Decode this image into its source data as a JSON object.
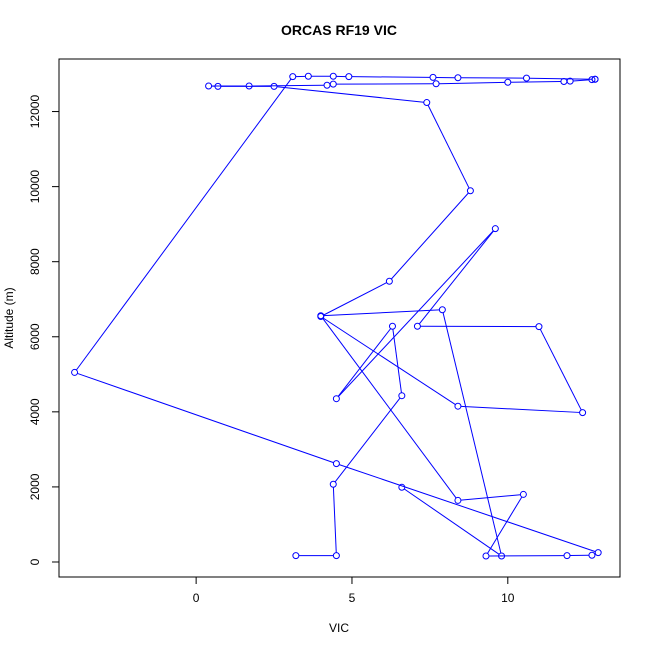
{
  "chart_data": {
    "type": "line",
    "title": "ORCAS RF19 VIC",
    "xlabel": "VIC",
    "ylabel": "Altitude (m)",
    "xlim": [
      -4.4,
      13.6
    ],
    "ylim": [
      -400,
      13400
    ],
    "xticks": [
      0,
      5,
      10
    ],
    "yticks": [
      0,
      2000,
      4000,
      6000,
      8000,
      10000,
      12000
    ],
    "series_color": "#0000ff",
    "markers": "open-circle",
    "grid": false,
    "x": [
      3.2,
      4.5,
      4.4,
      6.6,
      6.3,
      4.5,
      9.6,
      7.1,
      11.0,
      12.4,
      8.4,
      4.0,
      6.2,
      8.8,
      7.4,
      2.5,
      0.7,
      0.4,
      1.7,
      4.2,
      4.4,
      7.7,
      10.0,
      11.8,
      12.0,
      12.7,
      12.8,
      12.8,
      10.6,
      8.4,
      7.6,
      4.9,
      4.4,
      3.6,
      3.1,
      -3.9,
      4.5,
      12.9,
      12.7,
      11.9,
      9.3,
      10.5,
      8.4,
      4.0,
      7.9,
      9.8,
      6.6
    ],
    "y": [
      170,
      170,
      2070,
      4430,
      6280,
      4350,
      8880,
      6280,
      6270,
      3980,
      4150,
      6540,
      7480,
      9890,
      12240,
      12670,
      12670,
      12680,
      12680,
      12700,
      12730,
      12740,
      12780,
      12800,
      12810,
      12850,
      12860,
      12860,
      12890,
      12900,
      12910,
      12930,
      12940,
      12940,
      12930,
      5050,
      2620,
      250,
      180,
      170,
      160,
      1800,
      1640,
      6560,
      6720,
      160,
      1990
    ]
  }
}
